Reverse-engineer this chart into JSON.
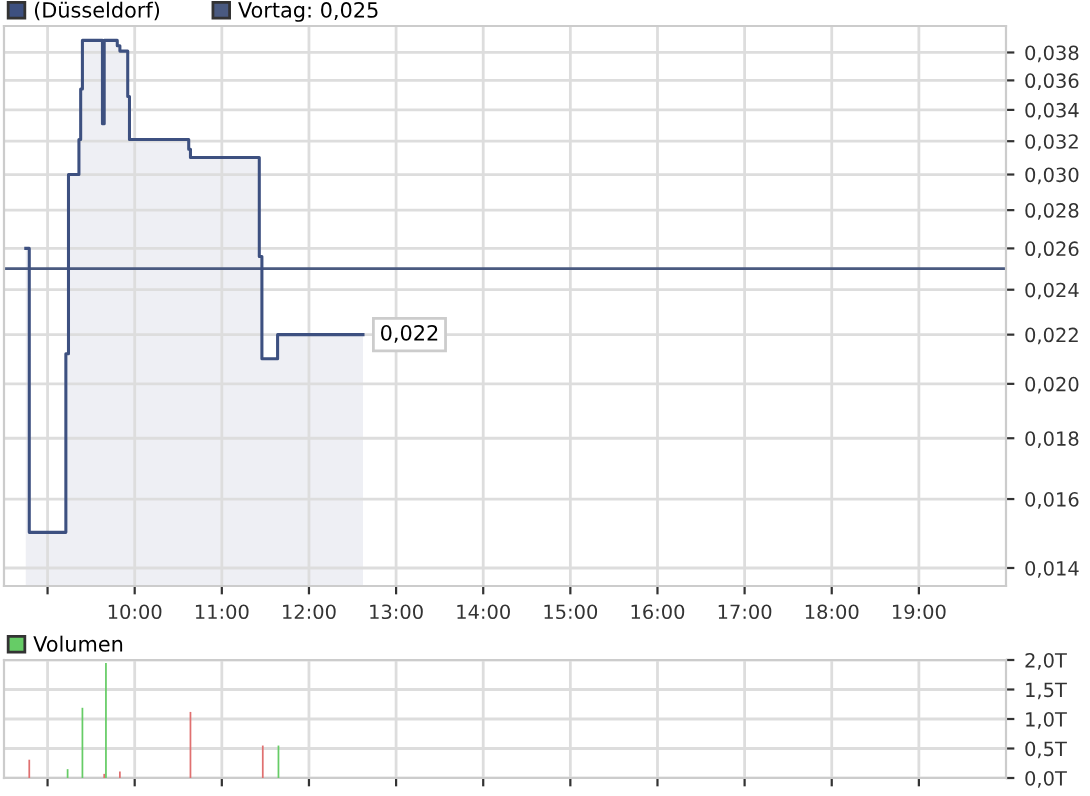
{
  "chart_data": [
    {
      "type": "area",
      "log": true,
      "grid": true,
      "legend": "top",
      "series": [
        {
          "name": "(Düsseldorf)",
          "color": "#3d5080",
          "x": [
            8.75,
            8.79,
            8.79,
            9.21,
            9.21,
            9.24,
            9.24,
            9.36,
            9.36,
            9.38,
            9.38,
            9.4,
            9.4,
            9.63,
            9.63,
            9.65,
            9.65,
            9.8,
            9.8,
            9.83,
            9.83,
            9.92,
            9.92,
            9.94,
            9.94,
            10.62,
            10.62,
            10.64,
            10.64,
            11.43,
            11.43,
            11.46,
            11.46,
            11.64,
            11.64,
            12.62
          ],
          "values": [
            0.026,
            0.026,
            0.015,
            0.015,
            0.0212,
            0.0212,
            0.03,
            0.03,
            0.0321,
            0.0321,
            0.0354,
            0.0354,
            0.0389,
            0.0389,
            0.0331,
            0.0331,
            0.0389,
            0.0389,
            0.0385,
            0.0385,
            0.0381,
            0.0381,
            0.0349,
            0.0349,
            0.0321,
            0.0321,
            0.0315,
            0.0315,
            0.031,
            0.031,
            0.0256,
            0.0256,
            0.021,
            0.021,
            0.022,
            0.022
          ]
        }
      ],
      "ref_lines": [
        {
          "axis": "y",
          "value": 0.025,
          "label": "Vortag: 0,025",
          "color": "#4a5a80"
        }
      ],
      "annotations": [
        {
          "text": "0,022",
          "x": 12.62,
          "y": 0.022
        }
      ],
      "xlim": [
        8.5,
        20
      ],
      "ylim": [
        0.01352,
        0.04
      ],
      "xticks": [
        {
          "value": 9,
          "label": null
        },
        {
          "value": 10,
          "label": "10:00"
        },
        {
          "value": 11,
          "label": "11:00"
        },
        {
          "value": 12,
          "label": "12:00"
        },
        {
          "value": 13,
          "label": "13:00"
        },
        {
          "value": 14,
          "label": "14:00"
        },
        {
          "value": 15,
          "label": "15:00"
        },
        {
          "value": 16,
          "label": "16:00"
        },
        {
          "value": 17,
          "label": "17:00"
        },
        {
          "value": 18,
          "label": "18:00"
        },
        {
          "value": 19,
          "label": "19:00"
        }
      ],
      "yticks": [
        {
          "value": 0.014,
          "label": "0,014"
        },
        {
          "value": 0.016,
          "label": "0,016"
        },
        {
          "value": 0.018,
          "label": "0,018"
        },
        {
          "value": 0.02,
          "label": "0,020"
        },
        {
          "value": 0.022,
          "label": "0,022"
        },
        {
          "value": 0.024,
          "label": "0,024"
        },
        {
          "value": 0.026,
          "label": "0,026"
        },
        {
          "value": 0.028,
          "label": "0,028"
        },
        {
          "value": 0.03,
          "label": "0,030"
        },
        {
          "value": 0.032,
          "label": "0,032"
        },
        {
          "value": 0.034,
          "label": "0,034"
        },
        {
          "value": 0.036,
          "label": "0,036"
        },
        {
          "value": 0.038,
          "label": "0,038"
        }
      ]
    },
    {
      "type": "bar",
      "grid": true,
      "legend": "top",
      "tick_labels": "y",
      "series": [
        {
          "name": "Volumen",
          "color": "#66cc66",
          "x": [
            8.79,
            9.23,
            9.4,
            9.65,
            9.67,
            9.83,
            10.64,
            11.47,
            11.65
          ],
          "values": [
            0.31,
            0.15,
            1.19,
            0.07,
            1.95,
            0.11,
            1.12,
            0.55,
            0.55
          ],
          "colors": [
            "#e07070",
            "#66cc66",
            "#66cc66",
            "#e07070",
            "#66cc66",
            "#e07070",
            "#e07070",
            "#e07070",
            "#66cc66"
          ]
        }
      ],
      "xlim": [
        8.5,
        20
      ],
      "ylim": [
        0,
        2
      ],
      "xticks": [
        {
          "value": 9,
          "label": null
        },
        {
          "value": 10,
          "label": null
        },
        {
          "value": 11,
          "label": null
        },
        {
          "value": 12,
          "label": null
        },
        {
          "value": 13,
          "label": null
        },
        {
          "value": 14,
          "label": null
        },
        {
          "value": 15,
          "label": null
        },
        {
          "value": 16,
          "label": null
        },
        {
          "value": 17,
          "label": null
        },
        {
          "value": 18,
          "label": null
        },
        {
          "value": 19,
          "label": null
        }
      ],
      "yticks": [
        {
          "value": 0,
          "label": "0,0T"
        },
        {
          "value": 0.5,
          "label": "0,5T"
        },
        {
          "value": 1.0,
          "label": "1,0T"
        },
        {
          "value": 1.5,
          "label": "1,5T"
        },
        {
          "value": 2.0,
          "label": "2,0T"
        }
      ]
    }
  ]
}
